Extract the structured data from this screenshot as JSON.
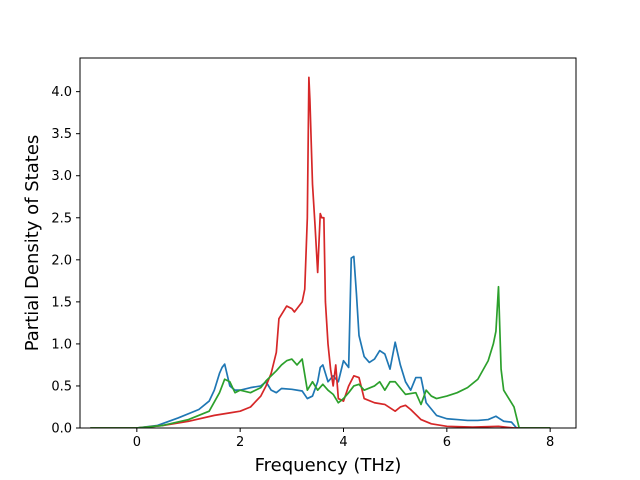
{
  "chart_data": {
    "type": "line",
    "title": "",
    "xlabel": "Frequency (THz)",
    "ylabel": "Partial Density of States",
    "xlim": [
      -1.1,
      8.5
    ],
    "ylim": [
      0,
      4.4
    ],
    "x_ticks": [
      "0",
      "2",
      "4",
      "6",
      "8"
    ],
    "y_ticks": [
      "0.0",
      "0.5",
      "1.0",
      "1.5",
      "2.0",
      "2.5",
      "3.0",
      "3.5",
      "4.0"
    ],
    "grid": false,
    "legend": "none",
    "series": [
      {
        "color": "#1f77b4",
        "x": [
          -0.9,
          0.0,
          0.4,
          0.8,
          1.2,
          1.4,
          1.5,
          1.6,
          1.65,
          1.7,
          1.8,
          1.9,
          2.0,
          2.2,
          2.4,
          2.5,
          2.6,
          2.7,
          2.8,
          3.0,
          3.2,
          3.3,
          3.4,
          3.5,
          3.55,
          3.6,
          3.7,
          3.8,
          3.9,
          4.0,
          4.1,
          4.15,
          4.2,
          4.25,
          4.3,
          4.4,
          4.5,
          4.6,
          4.7,
          4.8,
          4.9,
          5.0,
          5.1,
          5.2,
          5.3,
          5.4,
          5.5,
          5.6,
          5.8,
          6.0,
          6.2,
          6.4,
          6.6,
          6.8,
          6.95,
          7.0,
          7.1,
          7.25,
          7.35,
          7.5,
          8.0
        ],
        "y": [
          0.0,
          0.0,
          0.03,
          0.12,
          0.22,
          0.32,
          0.45,
          0.65,
          0.72,
          0.76,
          0.5,
          0.45,
          0.45,
          0.48,
          0.5,
          0.55,
          0.45,
          0.42,
          0.47,
          0.46,
          0.44,
          0.35,
          0.38,
          0.55,
          0.72,
          0.75,
          0.55,
          0.62,
          0.55,
          0.8,
          0.72,
          2.02,
          2.04,
          1.6,
          1.1,
          0.85,
          0.78,
          0.82,
          0.92,
          0.88,
          0.7,
          1.02,
          0.75,
          0.55,
          0.45,
          0.6,
          0.6,
          0.3,
          0.15,
          0.11,
          0.1,
          0.09,
          0.09,
          0.1,
          0.14,
          0.12,
          0.08,
          0.07,
          0.0,
          0.0,
          0.0
        ]
      },
      {
        "color": "#d62728",
        "x": [
          -0.9,
          0.0,
          0.5,
          1.0,
          1.5,
          1.8,
          2.0,
          2.2,
          2.4,
          2.5,
          2.6,
          2.7,
          2.75,
          2.85,
          2.9,
          3.0,
          3.05,
          3.1,
          3.2,
          3.25,
          3.3,
          3.33,
          3.35,
          3.4,
          3.45,
          3.5,
          3.55,
          3.58,
          3.62,
          3.65,
          3.7,
          3.75,
          3.8,
          3.85,
          3.9,
          4.0,
          4.1,
          4.2,
          4.3,
          4.4,
          4.6,
          4.8,
          5.0,
          5.1,
          5.2,
          5.3,
          5.5,
          5.7,
          6.0,
          6.5,
          7.0,
          7.3,
          8.0
        ],
        "y": [
          0.0,
          0.0,
          0.03,
          0.08,
          0.15,
          0.18,
          0.2,
          0.25,
          0.38,
          0.5,
          0.65,
          0.9,
          1.3,
          1.4,
          1.45,
          1.42,
          1.38,
          1.42,
          1.5,
          1.65,
          2.5,
          4.17,
          3.9,
          2.9,
          2.4,
          1.85,
          2.55,
          2.5,
          2.5,
          1.5,
          1.0,
          0.7,
          0.5,
          0.75,
          0.35,
          0.32,
          0.5,
          0.62,
          0.6,
          0.35,
          0.3,
          0.28,
          0.2,
          0.25,
          0.27,
          0.22,
          0.1,
          0.05,
          0.02,
          0.01,
          0.02,
          0.0,
          0.0
        ]
      },
      {
        "color": "#2ca02c",
        "x": [
          -0.9,
          0.0,
          0.5,
          1.0,
          1.4,
          1.6,
          1.7,
          1.8,
          1.9,
          2.0,
          2.2,
          2.4,
          2.5,
          2.7,
          2.8,
          2.9,
          3.0,
          3.1,
          3.2,
          3.3,
          3.4,
          3.5,
          3.6,
          3.7,
          3.8,
          3.9,
          4.0,
          4.1,
          4.2,
          4.3,
          4.4,
          4.6,
          4.7,
          4.8,
          4.9,
          5.0,
          5.2,
          5.4,
          5.5,
          5.6,
          5.7,
          5.8,
          6.0,
          6.2,
          6.4,
          6.6,
          6.8,
          6.9,
          6.95,
          7.0,
          7.05,
          7.1,
          7.2,
          7.3,
          7.4,
          8.0
        ],
        "y": [
          0.0,
          0.0,
          0.03,
          0.1,
          0.2,
          0.42,
          0.58,
          0.55,
          0.42,
          0.45,
          0.42,
          0.48,
          0.56,
          0.68,
          0.75,
          0.8,
          0.82,
          0.75,
          0.82,
          0.45,
          0.55,
          0.45,
          0.52,
          0.45,
          0.4,
          0.3,
          0.35,
          0.42,
          0.5,
          0.52,
          0.45,
          0.5,
          0.55,
          0.45,
          0.55,
          0.55,
          0.4,
          0.42,
          0.28,
          0.45,
          0.38,
          0.35,
          0.38,
          0.42,
          0.48,
          0.58,
          0.8,
          1.0,
          1.15,
          1.68,
          0.7,
          0.45,
          0.35,
          0.25,
          0.0,
          0.0
        ]
      }
    ]
  }
}
